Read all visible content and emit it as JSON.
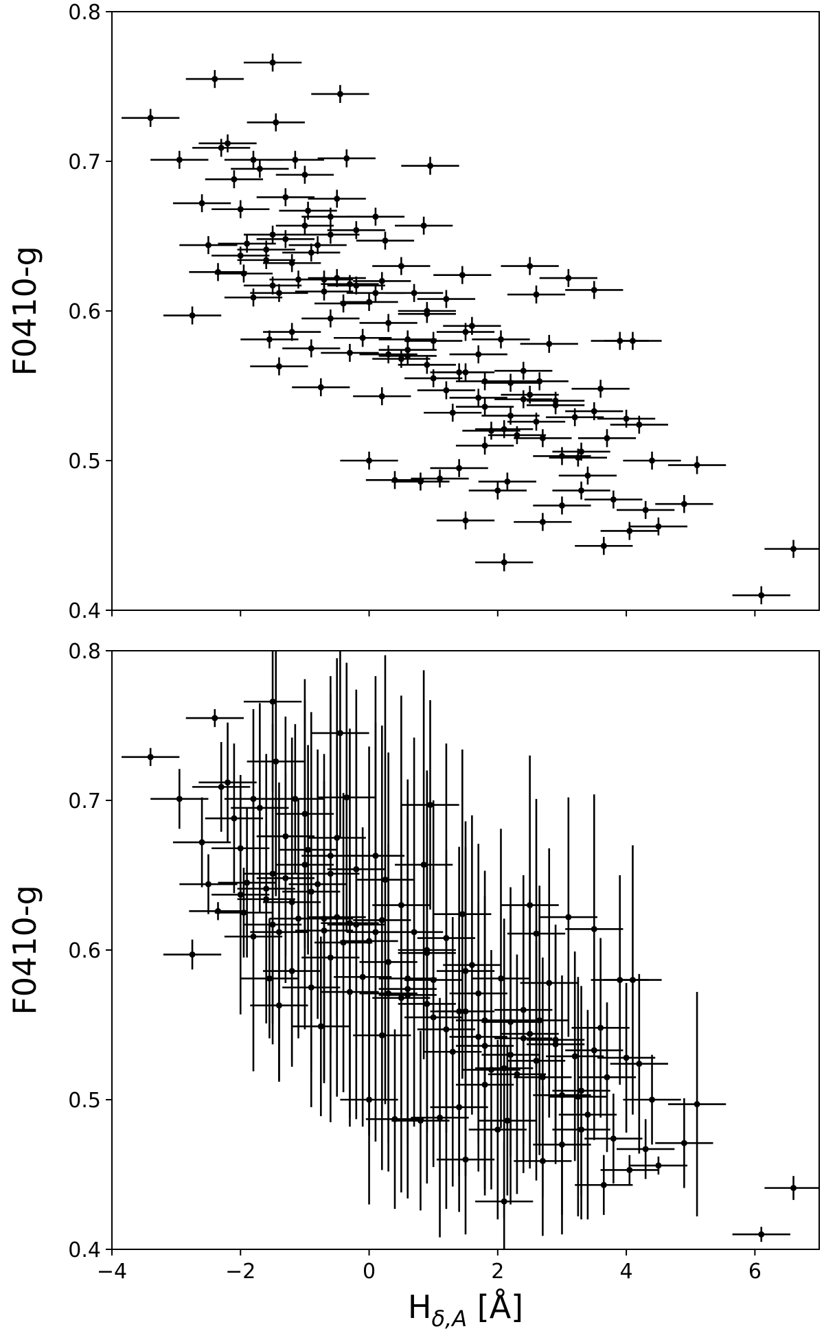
{
  "chart_data": [
    {
      "type": "scatter",
      "panel": "top",
      "xlabel": "",
      "ylabel": "F0410-g",
      "xlim": [
        -4,
        7
      ],
      "ylim": [
        0.4,
        0.8
      ],
      "xticks": [],
      "yticks": [
        "0.4",
        "0.5",
        "0.6",
        "0.7",
        "0.8"
      ],
      "grid": false,
      "legend": "none",
      "marker_color": "#000000",
      "errorbars": true,
      "series": [
        {
          "x": [
            -3.4,
            -2.95,
            -2.75,
            -2.4,
            -2.6,
            -2.5,
            -2.3,
            -2.2,
            -2.1,
            -2.0,
            -1.95,
            -1.9,
            -1.8,
            -1.7,
            -1.6,
            -1.55,
            -1.5,
            -1.45,
            -1.4,
            -1.3,
            -1.2,
            -1.1,
            -1.0,
            -0.95,
            -0.9,
            -0.8,
            -0.75,
            -0.7,
            -0.6,
            -0.5,
            -0.4,
            -0.3,
            -0.2,
            -0.1,
            0.0,
            0.1,
            0.2,
            0.3,
            0.4,
            0.5,
            0.6,
            0.7,
            0.8,
            0.9,
            1.0,
            1.1,
            1.2,
            1.3,
            1.4,
            1.5,
            1.6,
            1.7,
            1.8,
            1.9,
            2.0,
            2.1,
            2.2,
            2.3,
            2.4,
            2.5,
            2.6,
            2.7,
            2.8,
            2.9,
            3.0,
            3.1,
            3.2,
            3.3,
            3.4,
            3.5,
            3.6,
            3.7,
            3.8,
            3.9,
            4.0,
            4.1,
            4.2,
            4.3,
            4.4,
            4.5,
            4.9,
            5.1,
            6.1,
            6.6,
            -2.0,
            -1.8,
            -1.5,
            -1.2,
            -0.9,
            -0.6,
            -0.3,
            0.0,
            0.3,
            0.6,
            0.9,
            1.2,
            1.5,
            1.8,
            2.1,
            2.4,
            2.7,
            3.0,
            3.3,
            -1.6,
            -1.4,
            -1.0,
            -0.6,
            -0.2,
            0.2,
            0.6,
            1.0,
            1.4,
            1.8,
            2.2,
            2.6,
            -0.5,
            0.5,
            1.5,
            2.5,
            3.5,
            -1.3,
            -0.7,
            0.1,
            0.9,
            1.7,
            2.9,
            -1.5,
            -0.45,
            -2.35,
            -1.15,
            0.95,
            2.15,
            3.65,
            4.05,
            -0.35,
            0.25,
            0.85,
            1.45,
            2.05,
            2.65,
            3.25
          ],
          "y": [
            0.729,
            0.701,
            0.597,
            0.755,
            0.672,
            0.644,
            0.709,
            0.712,
            0.688,
            0.668,
            0.625,
            0.645,
            0.701,
            0.695,
            0.634,
            0.581,
            0.617,
            0.726,
            0.563,
            0.648,
            0.586,
            0.621,
            0.691,
            0.667,
            0.575,
            0.644,
            0.549,
            0.613,
            0.595,
            0.675,
            0.605,
            0.572,
            0.654,
            0.582,
            0.5,
            0.663,
            0.543,
            0.571,
            0.487,
            0.63,
            0.581,
            0.612,
            0.486,
            0.6,
            0.555,
            0.488,
            0.608,
            0.532,
            0.495,
            0.46,
            0.59,
            0.542,
            0.51,
            0.52,
            0.48,
            0.432,
            0.53,
            0.517,
            0.56,
            0.63,
            0.611,
            0.459,
            0.578,
            0.54,
            0.47,
            0.622,
            0.529,
            0.48,
            0.49,
            0.614,
            0.548,
            0.515,
            0.474,
            0.58,
            0.528,
            0.58,
            0.524,
            0.467,
            0.5,
            0.456,
            0.471,
            0.497,
            0.41,
            0.441,
            0.637,
            0.609,
            0.651,
            0.632,
            0.639,
            0.663,
            0.618,
            0.606,
            0.592,
            0.57,
            0.564,
            0.547,
            0.559,
            0.553,
            0.521,
            0.541,
            0.515,
            0.503,
            0.506,
            0.641,
            0.612,
            0.657,
            0.651,
            0.617,
            0.62,
            0.574,
            0.58,
            0.559,
            0.536,
            0.552,
            0.526,
            0.622,
            0.568,
            0.586,
            0.544,
            0.533,
            0.676,
            0.621,
            0.612,
            0.598,
            0.571,
            0.537,
            0.766,
            0.745,
            0.626,
            0.701,
            0.697,
            0.486,
            0.443,
            0.453,
            0.702,
            0.647,
            0.657,
            0.624,
            0.581,
            0.553,
            0.502
          ],
          "xerr": 0.45,
          "yerr": 0.006
        }
      ]
    },
    {
      "type": "scatter",
      "panel": "bottom",
      "xlabel": "H_{δ,A} [Å]",
      "ylabel": "F0410-g",
      "xlim": [
        -4,
        7
      ],
      "ylim": [
        0.4,
        0.8
      ],
      "xticks": [
        "−4",
        "−2",
        "0",
        "2",
        "4",
        "6"
      ],
      "yticks": [
        "0.4",
        "0.5",
        "0.6",
        "0.7",
        "0.8"
      ],
      "grid": false,
      "legend": "none",
      "marker_color": "#000000",
      "errorbars": true,
      "series": [
        {
          "x": [
            -3.4,
            -2.95,
            -2.75,
            -2.4,
            -2.6,
            -2.5,
            -2.3,
            -2.2,
            -2.1,
            -2.0,
            -1.95,
            -1.9,
            -1.8,
            -1.7,
            -1.6,
            -1.55,
            -1.5,
            -1.45,
            -1.4,
            -1.3,
            -1.2,
            -1.1,
            -1.0,
            -0.95,
            -0.9,
            -0.8,
            -0.75,
            -0.7,
            -0.6,
            -0.5,
            -0.4,
            -0.3,
            -0.2,
            -0.1,
            0.0,
            0.1,
            0.2,
            0.3,
            0.4,
            0.5,
            0.6,
            0.7,
            0.8,
            0.9,
            1.0,
            1.1,
            1.2,
            1.3,
            1.4,
            1.5,
            1.6,
            1.7,
            1.8,
            1.9,
            2.0,
            2.1,
            2.2,
            2.3,
            2.4,
            2.5,
            2.6,
            2.7,
            2.8,
            2.9,
            3.0,
            3.1,
            3.2,
            3.3,
            3.4,
            3.5,
            3.6,
            3.7,
            3.8,
            3.9,
            4.0,
            4.1,
            4.2,
            4.3,
            4.4,
            4.5,
            4.9,
            5.1,
            6.1,
            6.6,
            -2.0,
            -1.8,
            -1.5,
            -1.2,
            -0.9,
            -0.6,
            -0.3,
            0.0,
            0.3,
            0.6,
            0.9,
            1.2,
            1.5,
            1.8,
            2.1,
            2.4,
            2.7,
            3.0,
            3.3,
            -1.6,
            -1.4,
            -1.0,
            -0.6,
            -0.2,
            0.2,
            0.6,
            1.0,
            1.4,
            1.8,
            2.2,
            2.6,
            -0.5,
            0.5,
            1.5,
            2.5,
            3.5,
            -1.3,
            -0.7,
            0.1,
            0.9,
            1.7,
            2.9,
            -1.5,
            -0.45,
            -2.35,
            -1.15,
            0.95,
            2.15,
            3.65,
            4.05,
            -0.35,
            0.25,
            0.85,
            1.45,
            2.05,
            2.65,
            3.25
          ],
          "y": [
            0.729,
            0.701,
            0.597,
            0.755,
            0.672,
            0.644,
            0.709,
            0.712,
            0.688,
            0.668,
            0.625,
            0.645,
            0.701,
            0.695,
            0.634,
            0.581,
            0.617,
            0.726,
            0.563,
            0.648,
            0.586,
            0.621,
            0.691,
            0.667,
            0.575,
            0.644,
            0.549,
            0.613,
            0.595,
            0.675,
            0.605,
            0.572,
            0.654,
            0.582,
            0.5,
            0.663,
            0.543,
            0.571,
            0.487,
            0.63,
            0.581,
            0.612,
            0.486,
            0.6,
            0.555,
            0.488,
            0.608,
            0.532,
            0.495,
            0.46,
            0.59,
            0.542,
            0.51,
            0.52,
            0.48,
            0.432,
            0.53,
            0.517,
            0.56,
            0.63,
            0.611,
            0.459,
            0.578,
            0.54,
            0.47,
            0.622,
            0.529,
            0.48,
            0.49,
            0.614,
            0.548,
            0.515,
            0.474,
            0.58,
            0.528,
            0.58,
            0.524,
            0.467,
            0.5,
            0.456,
            0.471,
            0.497,
            0.41,
            0.441,
            0.637,
            0.609,
            0.651,
            0.632,
            0.639,
            0.663,
            0.618,
            0.606,
            0.592,
            0.57,
            0.564,
            0.547,
            0.559,
            0.553,
            0.521,
            0.541,
            0.515,
            0.503,
            0.506,
            0.641,
            0.612,
            0.657,
            0.651,
            0.617,
            0.62,
            0.574,
            0.58,
            0.559,
            0.536,
            0.552,
            0.526,
            0.622,
            0.568,
            0.586,
            0.544,
            0.533,
            0.676,
            0.621,
            0.612,
            0.598,
            0.571,
            0.537,
            0.766,
            0.745,
            0.626,
            0.701,
            0.697,
            0.486,
            0.443,
            0.453,
            0.702,
            0.647,
            0.657,
            0.624,
            0.581,
            0.553,
            0.502
          ],
          "xerr": 0.45,
          "yerr": [
            0.006,
            0.02,
            0.01,
            0.006,
            0.03,
            0.02,
            0.03,
            0.04,
            0.05,
            0.04,
            0.03,
            0.05,
            0.06,
            0.07,
            0.05,
            0.04,
            0.08,
            0.09,
            0.05,
            0.07,
            0.06,
            0.08,
            0.09,
            0.07,
            0.08,
            0.09,
            0.06,
            0.1,
            0.11,
            0.12,
            0.1,
            0.09,
            0.12,
            0.1,
            0.07,
            0.12,
            0.09,
            0.1,
            0.06,
            0.14,
            0.11,
            0.13,
            0.06,
            0.12,
            0.1,
            0.08,
            0.13,
            0.09,
            0.07,
            0.05,
            0.1,
            0.09,
            0.07,
            0.08,
            0.06,
            0.04,
            0.1,
            0.08,
            0.09,
            0.1,
            0.09,
            0.05,
            0.09,
            0.07,
            0.06,
            0.08,
            0.07,
            0.06,
            0.07,
            0.09,
            0.06,
            0.05,
            0.03,
            0.07,
            0.05,
            0.09,
            0.06,
            0.02,
            0.03,
            0.006,
            0.03,
            0.075,
            0.005,
            0.008,
            0.08,
            0.09,
            0.1,
            0.11,
            0.12,
            0.12,
            0.13,
            0.13,
            0.14,
            0.13,
            0.12,
            0.12,
            0.11,
            0.1,
            0.1,
            0.09,
            0.08,
            0.08,
            0.07,
            0.09,
            0.1,
            0.11,
            0.12,
            0.13,
            0.13,
            0.14,
            0.12,
            0.11,
            0.1,
            0.09,
            0.08,
            0.12,
            0.13,
            0.1,
            0.09,
            0.06,
            0.08,
            0.11,
            0.14,
            0.12,
            0.1,
            0.08,
            0.06,
            0.07,
            0.006,
            0.05,
            0.07,
            0.05,
            0.02,
            0.01,
            0.09,
            0.15,
            0.13,
            0.11,
            0.1,
            0.09,
            0.08
          ]
        }
      ]
    }
  ]
}
